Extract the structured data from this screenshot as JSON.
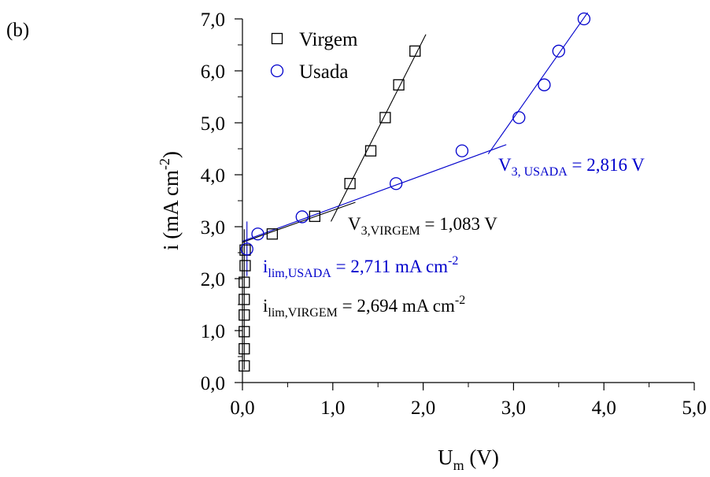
{
  "panel_label": "(b)",
  "chart_data": {
    "type": "scatter",
    "xlabel_main": "U",
    "xlabel_sub": "m",
    "xlabel_tail": " (V)",
    "ylabel_main": "i (mA cm",
    "ylabel_sup": "-2",
    "ylabel_tail": ")",
    "xlim": [
      0.0,
      5.0
    ],
    "ylim": [
      0.0,
      7.0
    ],
    "x_ticks": [
      0.0,
      1.0,
      2.0,
      3.0,
      4.0,
      5.0
    ],
    "x_tick_labels": [
      "0,0",
      "1,0",
      "2,0",
      "3,0",
      "4,0",
      "5,0"
    ],
    "y_ticks": [
      0.0,
      1.0,
      2.0,
      3.0,
      4.0,
      5.0,
      6.0,
      7.0
    ],
    "y_tick_labels": [
      "0,0",
      "1,0",
      "2,0",
      "3,0",
      "4,0",
      "5,0",
      "6,0",
      "7,0"
    ],
    "grid": false,
    "legend_position": "top-left",
    "series": [
      {
        "name": "Virgem",
        "marker": "square",
        "color": "#000000",
        "x": [
          0.02,
          0.02,
          0.02,
          0.02,
          0.02,
          0.02,
          0.03,
          0.03,
          0.33,
          0.8,
          1.19,
          1.42,
          1.58,
          1.73,
          1.91
        ],
        "y": [
          0.32,
          0.65,
          0.98,
          1.3,
          1.6,
          1.93,
          2.25,
          2.55,
          2.86,
          3.2,
          3.83,
          4.46,
          5.1,
          5.73,
          6.38
        ]
      },
      {
        "name": "Usada",
        "marker": "circle",
        "color": "#0000cc",
        "x": [
          0.05,
          0.17,
          0.66,
          1.7,
          2.43,
          3.06,
          3.34,
          3.5,
          3.78
        ],
        "y": [
          2.57,
          2.86,
          3.19,
          3.83,
          4.46,
          5.1,
          5.73,
          6.38,
          7.0
        ]
      }
    ],
    "fit_lines": [
      {
        "color": "#000000",
        "x": [
          0.0,
          1.25
        ],
        "y": [
          2.7,
          3.47
        ]
      },
      {
        "color": "#000000",
        "x": [
          0.98,
          2.03
        ],
        "y": [
          3.1,
          6.7
        ]
      },
      {
        "color": "#0000cc",
        "x": [
          0.0,
          2.92
        ],
        "y": [
          2.72,
          4.58
        ]
      },
      {
        "color": "#0000cc",
        "x": [
          2.72,
          3.82
        ],
        "y": [
          4.4,
          7.12
        ]
      },
      {
        "color": "#000000",
        "x": [
          0.02,
          0.02
        ],
        "y": [
          0.25,
          2.95
        ]
      },
      {
        "color": "#0000cc",
        "x": [
          0.05,
          0.05
        ],
        "y": [
          2.05,
          3.1
        ]
      }
    ],
    "annotations": [
      {
        "main": "V",
        "sub": "3,VIRGEM",
        "rest": " = 1,083 V",
        "sup": "",
        "color": "#000000"
      },
      {
        "main": "V",
        "sub": "3, USADA",
        "rest": " = 2,816 V",
        "sup": "",
        "color": "#0000cc"
      },
      {
        "main": "i",
        "sub": "lim,USADA",
        "rest": " = 2,711 mA cm",
        "sup": "-2",
        "color": "#0000cc"
      },
      {
        "main": "i",
        "sub": "lim,VIRGEM",
        "rest": " = 2,694 mA cm",
        "sup": "-2",
        "color": "#000000"
      }
    ]
  }
}
